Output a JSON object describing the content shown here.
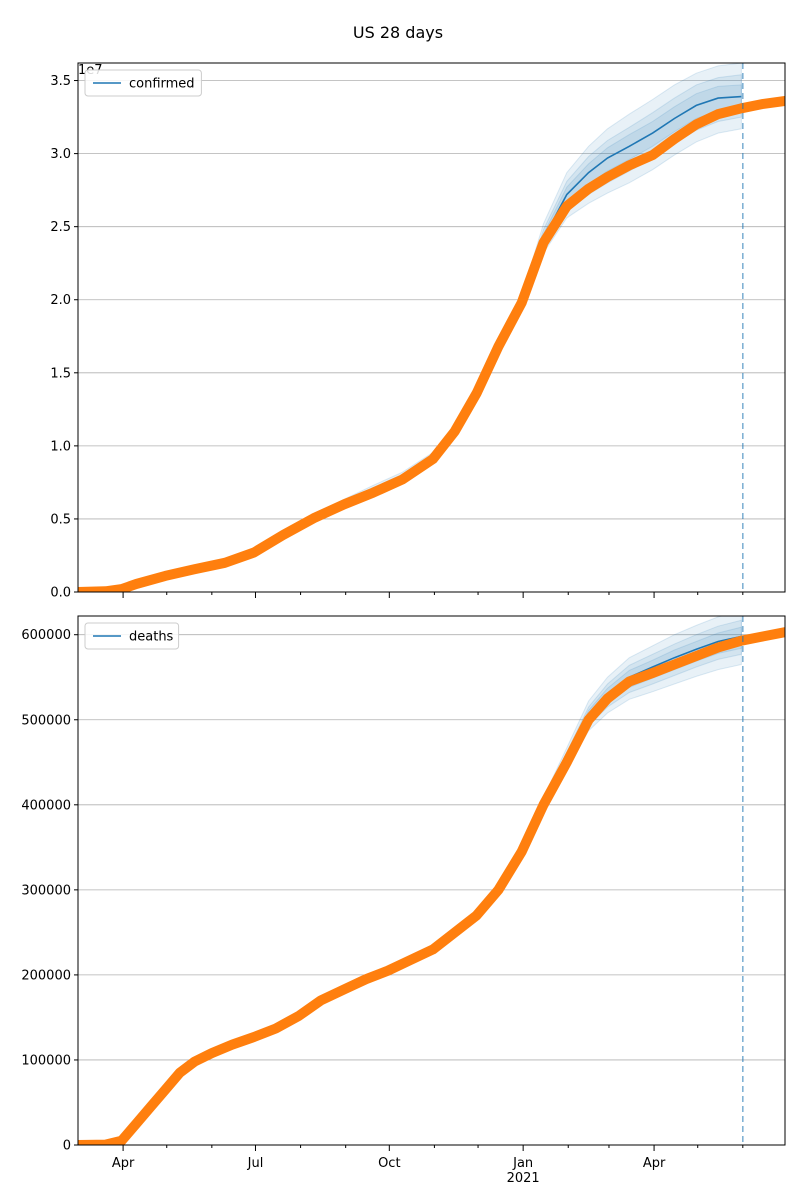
{
  "title": "US 28 days",
  "colors": {
    "model": "#1f77b4",
    "observed": "#ff7f0e",
    "band": "#1f77b4",
    "grid": "#b0b0b0",
    "vline": "#1f77b4"
  },
  "x_axis": {
    "range": [
      "2020-03-01",
      "2021-06-30"
    ],
    "ticks": [
      {
        "date": "2020-04-01",
        "label": "Apr"
      },
      {
        "date": "2020-07-01",
        "label": "Jul"
      },
      {
        "date": "2020-10-01",
        "label": "Oct"
      },
      {
        "date": "2021-01-01",
        "label": "Jan",
        "sublabel": "2021"
      },
      {
        "date": "2021-04-01",
        "label": "Apr"
      }
    ],
    "minor_ticks": [
      "2020-05-01",
      "2020-06-01",
      "2020-08-01",
      "2020-09-01",
      "2020-11-01",
      "2020-12-01",
      "2021-02-01",
      "2021-03-01",
      "2021-05-01",
      "2021-06-01"
    ]
  },
  "forecast_end_date": "2021-06-01",
  "chart_data": [
    {
      "type": "line",
      "legend": "confirmed",
      "offset_label": "1e7",
      "ylim": [
        0,
        36200000
      ],
      "yticks": [
        {
          "value": 0,
          "label": "0.0"
        },
        {
          "value": 5000000,
          "label": "0.5"
        },
        {
          "value": 10000000,
          "label": "1.0"
        },
        {
          "value": 15000000,
          "label": "1.5"
        },
        {
          "value": 20000000,
          "label": "2.0"
        },
        {
          "value": 25000000,
          "label": "2.5"
        },
        {
          "value": 30000000,
          "label": "3.0"
        },
        {
          "value": 35000000,
          "label": "3.5"
        }
      ],
      "grid": true,
      "legend_position": "top-left",
      "observed": {
        "x": [
          "2020-03-01",
          "2020-03-20",
          "2020-03-31",
          "2020-04-10",
          "2020-04-30",
          "2020-05-20",
          "2020-06-10",
          "2020-06-30",
          "2020-07-20",
          "2020-08-10",
          "2020-08-31",
          "2020-09-20",
          "2020-10-10",
          "2020-10-31",
          "2020-11-15",
          "2020-11-30",
          "2020-12-15",
          "2020-12-31",
          "2021-01-15",
          "2021-01-31",
          "2021-02-15",
          "2021-02-28",
          "2021-03-15",
          "2021-03-31",
          "2021-04-15",
          "2021-04-30",
          "2021-05-15",
          "2021-05-31",
          "2021-06-15",
          "2021-06-30"
        ],
        "y": [
          0,
          50000,
          200000,
          550000,
          1100000,
          1550000,
          2000000,
          2700000,
          3900000,
          5050000,
          6000000,
          6800000,
          7700000,
          9100000,
          11000000,
          13600000,
          16800000,
          19800000,
          23900000,
          26400000,
          27600000,
          28400000,
          29200000,
          29900000,
          31000000,
          32000000,
          32700000,
          33100000,
          33400000,
          33600000
        ]
      },
      "model": {
        "x": [
          "2020-03-01",
          "2020-03-20",
          "2020-03-31",
          "2020-04-10",
          "2020-04-30",
          "2020-05-20",
          "2020-06-10",
          "2020-06-30",
          "2020-07-20",
          "2020-08-10",
          "2020-08-31",
          "2020-09-20",
          "2020-10-10",
          "2020-10-31",
          "2020-11-15",
          "2020-11-30",
          "2020-12-15",
          "2020-12-31",
          "2021-01-15",
          "2021-01-31",
          "2021-02-15",
          "2021-02-28",
          "2021-03-15",
          "2021-03-31",
          "2021-04-15",
          "2021-04-30",
          "2021-05-15",
          "2021-05-31"
        ],
        "y": [
          0,
          50000,
          200000,
          550000,
          1100000,
          1550000,
          2000000,
          2700000,
          3900000,
          5100000,
          6100000,
          6950000,
          7850000,
          9200000,
          11100000,
          13700000,
          16900000,
          19900000,
          24200000,
          27200000,
          28700000,
          29700000,
          30500000,
          31400000,
          32400000,
          33300000,
          33800000,
          33900000
        ]
      },
      "bands": [
        {
          "lower": [
            0,
            50000,
            200000,
            550000,
            1100000,
            1550000,
            2000000,
            2700000,
            3900000,
            5000000,
            5950000,
            6750000,
            7650000,
            9050000,
            10950000,
            13500000,
            16700000,
            19700000,
            23500000,
            26100000,
            27200000,
            28000000,
            28800000,
            29700000,
            30700000,
            31600000,
            32200000,
            32500000
          ],
          "upper": [
            0,
            50000,
            200000,
            550000,
            1100000,
            1550000,
            2000000,
            2700000,
            3900000,
            5200000,
            6250000,
            7150000,
            8050000,
            9400000,
            11300000,
            13900000,
            17100000,
            20100000,
            24800000,
            28100000,
            29800000,
            30900000,
            31800000,
            32800000,
            33800000,
            34700000,
            35200000,
            35400000
          ]
        },
        {
          "lower": [
            0,
            50000,
            200000,
            550000,
            1100000,
            1550000,
            2000000,
            2700000,
            3900000,
            5050000,
            6000000,
            6800000,
            7700000,
            9100000,
            11000000,
            13600000,
            16800000,
            19800000,
            23800000,
            26600000,
            27900000,
            28800000,
            29600000,
            30500000,
            31500000,
            32400000,
            32900000,
            33100000
          ],
          "upper": [
            0,
            50000,
            200000,
            550000,
            1100000,
            1550000,
            2000000,
            2700000,
            3900000,
            5150000,
            6200000,
            7100000,
            8000000,
            9300000,
            11200000,
            13800000,
            17000000,
            20000000,
            24500000,
            27700000,
            29300000,
            30400000,
            31300000,
            32200000,
            33200000,
            34100000,
            34600000,
            34700000
          ]
        },
        {
          "lower": [
            0,
            50000,
            200000,
            550000,
            1100000,
            1550000,
            2000000,
            2700000,
            3900000,
            4950000,
            5850000,
            6650000,
            7550000,
            8950000,
            10850000,
            13400000,
            16600000,
            19600000,
            23200000,
            25600000,
            26600000,
            27300000,
            28000000,
            28900000,
            29900000,
            30800000,
            31400000,
            31700000
          ],
          "upper": [
            0,
            50000,
            200000,
            550000,
            1100000,
            1550000,
            2000000,
            2700000,
            3900000,
            5250000,
            6350000,
            7300000,
            8200000,
            9550000,
            11450000,
            14050000,
            17250000,
            20300000,
            25200000,
            28700000,
            30500000,
            31700000,
            32700000,
            33700000,
            34700000,
            35500000,
            36000000,
            36200000
          ]
        }
      ]
    },
    {
      "type": "line",
      "legend": "deaths",
      "offset_label": "",
      "ylim": [
        0,
        622000
      ],
      "yticks": [
        {
          "value": 0,
          "label": "0"
        },
        {
          "value": 100000,
          "label": "100000"
        },
        {
          "value": 200000,
          "label": "200000"
        },
        {
          "value": 300000,
          "label": "300000"
        },
        {
          "value": 400000,
          "label": "400000"
        },
        {
          "value": 500000,
          "label": "500000"
        },
        {
          "value": 600000,
          "label": "600000"
        }
      ],
      "grid": true,
      "legend_position": "top-left",
      "observed": {
        "x": [
          "2020-03-01",
          "2020-03-20",
          "2020-03-31",
          "2020-04-10",
          "2020-04-20",
          "2020-04-30",
          "2020-05-10",
          "2020-05-20",
          "2020-06-01",
          "2020-06-15",
          "2020-06-30",
          "2020-07-15",
          "2020-07-31",
          "2020-08-15",
          "2020-08-31",
          "2020-09-15",
          "2020-09-30",
          "2020-10-15",
          "2020-10-31",
          "2020-11-15",
          "2020-11-30",
          "2020-12-15",
          "2020-12-31",
          "2021-01-15",
          "2021-01-31",
          "2021-02-15",
          "2021-02-28",
          "2021-03-15",
          "2021-03-31",
          "2021-04-15",
          "2021-04-30",
          "2021-05-15",
          "2021-05-31",
          "2021-06-15",
          "2021-06-30"
        ],
        "y": [
          0,
          500,
          5000,
          25000,
          45000,
          65000,
          85000,
          98000,
          108000,
          118000,
          127000,
          137000,
          152000,
          170000,
          183000,
          195000,
          205000,
          217000,
          230000,
          250000,
          270000,
          300000,
          345000,
          400000,
          450000,
          500000,
          525000,
          545000,
          555000,
          565000,
          575000,
          585000,
          593000,
          598000,
          603000
        ]
      },
      "model": {
        "x": [
          "2020-03-01",
          "2020-03-20",
          "2020-03-31",
          "2020-04-10",
          "2020-04-20",
          "2020-04-30",
          "2020-05-10",
          "2020-05-20",
          "2020-06-01",
          "2020-06-15",
          "2020-06-30",
          "2020-07-15",
          "2020-07-31",
          "2020-08-15",
          "2020-08-31",
          "2020-09-15",
          "2020-09-30",
          "2020-10-15",
          "2020-10-31",
          "2020-11-15",
          "2020-11-30",
          "2020-12-15",
          "2020-12-31",
          "2021-01-15",
          "2021-01-31",
          "2021-02-15",
          "2021-02-28",
          "2021-03-15",
          "2021-03-31",
          "2021-04-15",
          "2021-04-30",
          "2021-05-15",
          "2021-05-31"
        ],
        "y": [
          0,
          500,
          5000,
          25000,
          45000,
          65000,
          85000,
          98000,
          108000,
          118000,
          127000,
          137000,
          152000,
          170000,
          183000,
          195000,
          205000,
          217000,
          230000,
          250000,
          270000,
          300000,
          345000,
          402000,
          455000,
          505000,
          530000,
          550000,
          562000,
          573000,
          583000,
          592000,
          598000
        ]
      },
      "bands": [
        {
          "lower": [
            0,
            500,
            5000,
            25000,
            45000,
            65000,
            85000,
            98000,
            108000,
            118000,
            127000,
            137000,
            152000,
            170000,
            183000,
            195000,
            205000,
            217000,
            230000,
            250000,
            270000,
            300000,
            345000,
            398000,
            447000,
            493000,
            515000,
            532000,
            542000,
            552000,
            562000,
            571000,
            577000
          ],
          "upper": [
            0,
            500,
            5000,
            25000,
            45000,
            65000,
            85000,
            98000,
            108000,
            118000,
            127000,
            137000,
            152000,
            170000,
            183000,
            195000,
            205000,
            217000,
            230000,
            250000,
            270000,
            300000,
            345000,
            406000,
            462000,
            515000,
            542000,
            564000,
            577000,
            589000,
            600000,
            610000,
            617000
          ]
        },
        {
          "lower": [
            0,
            500,
            5000,
            25000,
            45000,
            65000,
            85000,
            98000,
            108000,
            118000,
            127000,
            137000,
            152000,
            170000,
            183000,
            195000,
            205000,
            217000,
            230000,
            250000,
            270000,
            300000,
            345000,
            399000,
            450000,
            497000,
            520000,
            538000,
            549000,
            559000,
            569000,
            578000,
            584000
          ],
          "upper": [
            0,
            500,
            5000,
            25000,
            45000,
            65000,
            85000,
            98000,
            108000,
            118000,
            127000,
            137000,
            152000,
            170000,
            183000,
            195000,
            205000,
            217000,
            230000,
            250000,
            270000,
            300000,
            345000,
            404000,
            459000,
            511000,
            537000,
            558000,
            570000,
            582000,
            592000,
            602000,
            609000
          ]
        },
        {
          "lower": [
            0,
            500,
            5000,
            25000,
            45000,
            65000,
            85000,
            98000,
            108000,
            118000,
            127000,
            137000,
            152000,
            170000,
            183000,
            195000,
            205000,
            217000,
            230000,
            250000,
            270000,
            300000,
            345000,
            396000,
            443000,
            487000,
            508000,
            524000,
            533000,
            542000,
            551000,
            559000,
            565000
          ],
          "upper": [
            0,
            500,
            5000,
            25000,
            45000,
            65000,
            85000,
            98000,
            108000,
            118000,
            127000,
            137000,
            152000,
            170000,
            183000,
            195000,
            205000,
            217000,
            230000,
            250000,
            270000,
            300000,
            345000,
            409000,
            467000,
            522000,
            550000,
            573000,
            587000,
            600000,
            611000,
            621000,
            628000
          ]
        }
      ]
    }
  ]
}
